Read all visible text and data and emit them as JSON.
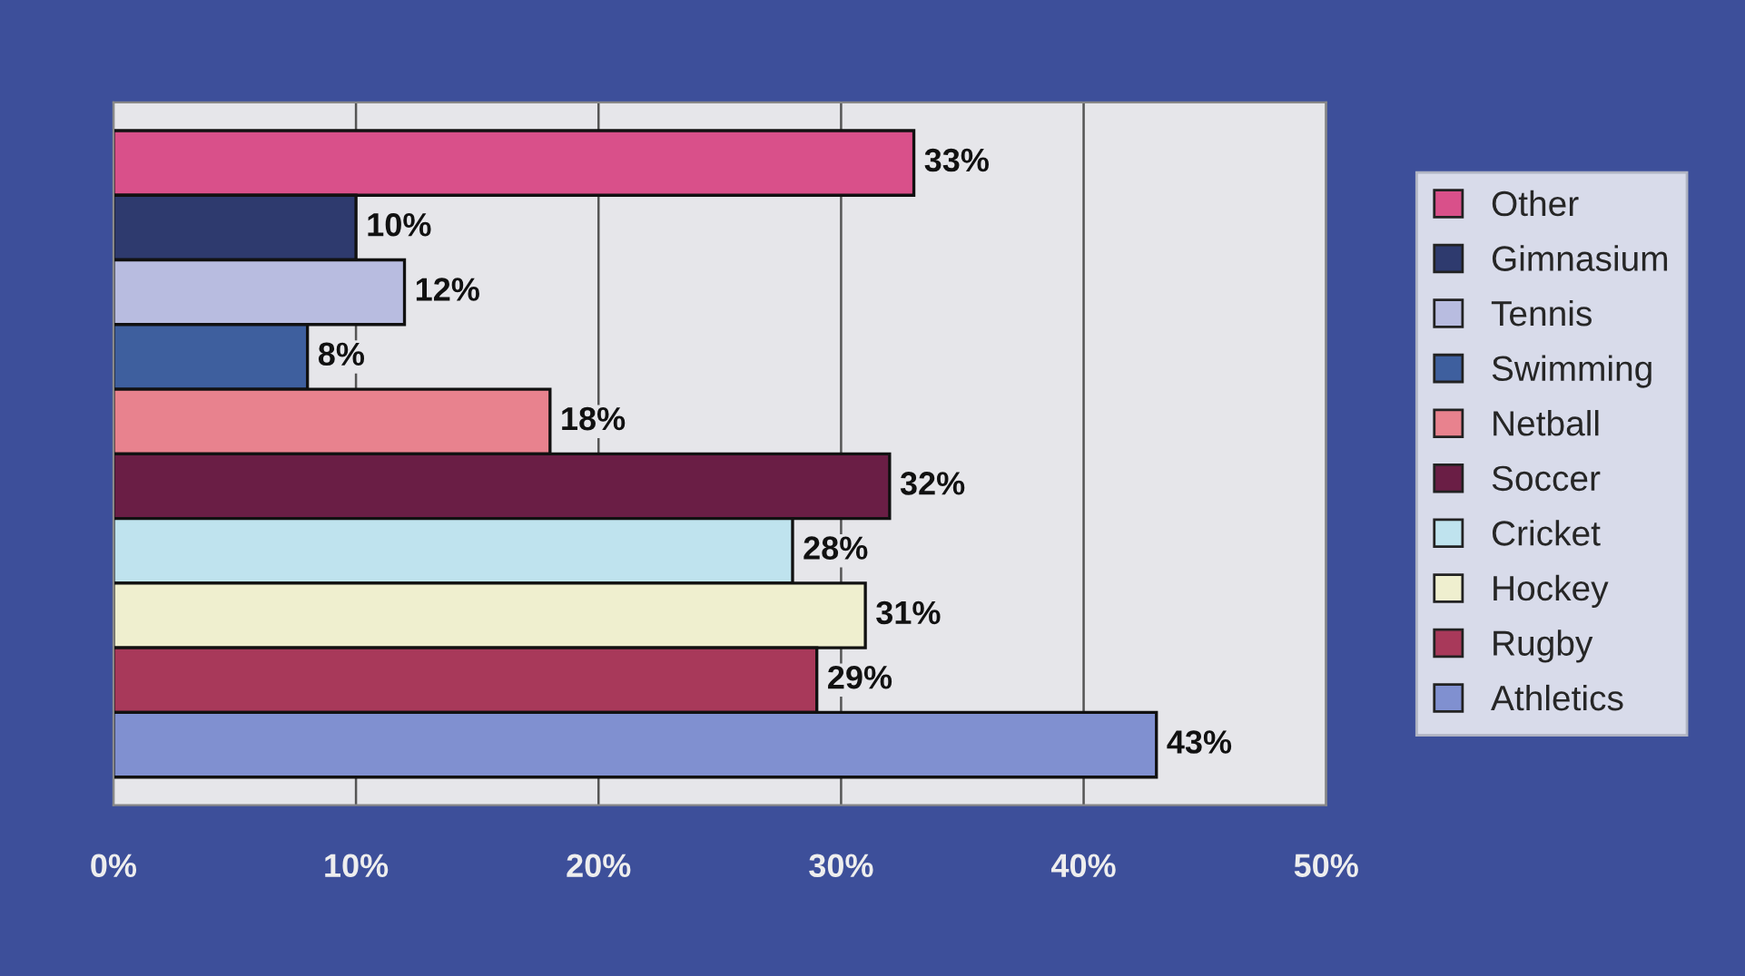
{
  "chart_data": {
    "type": "bar",
    "orientation": "horizontal",
    "categories": [
      null
    ],
    "series": [
      {
        "name": "Other",
        "color": "#d9508a",
        "values": [
          33
        ],
        "value_labels": [
          "33%"
        ]
      },
      {
        "name": "Gimnasium",
        "color": "#2e3a6e",
        "values": [
          10
        ],
        "value_labels": [
          "10%"
        ]
      },
      {
        "name": "Tennis",
        "color": "#b8bce0",
        "values": [
          12
        ],
        "value_labels": [
          "12%"
        ]
      },
      {
        "name": "Swimming",
        "color": "#3e5f9e",
        "values": [
          8
        ],
        "value_labels": [
          "8%"
        ]
      },
      {
        "name": "Netball",
        "color": "#e8828e",
        "values": [
          18
        ],
        "value_labels": [
          "18%"
        ]
      },
      {
        "name": "Soccer",
        "color": "#6a1e45",
        "values": [
          32
        ],
        "value_labels": [
          "32%"
        ]
      },
      {
        "name": "Cricket",
        "color": "#bfe3ee",
        "values": [
          28
        ],
        "value_labels": [
          "28%"
        ]
      },
      {
        "name": "Hockey",
        "color": "#efefcf",
        "values": [
          31
        ],
        "value_labels": [
          "31%"
        ]
      },
      {
        "name": "Rugby",
        "color": "#a8395a",
        "values": [
          29
        ],
        "value_labels": [
          "29%"
        ]
      },
      {
        "name": "Athletics",
        "color": "#8090d0",
        "values": [
          43
        ],
        "value_labels": [
          "43%"
        ]
      }
    ],
    "xlim": [
      0,
      50
    ],
    "xticks": [
      {
        "value": 0,
        "label": "0%"
      },
      {
        "value": 10,
        "label": "10%"
      },
      {
        "value": 20,
        "label": "20%"
      },
      {
        "value": 30,
        "label": "30%"
      },
      {
        "value": 40,
        "label": "40%"
      },
      {
        "value": 50,
        "label": "50%"
      }
    ],
    "grid": "x",
    "legend": "right",
    "tick_labels": "x"
  }
}
